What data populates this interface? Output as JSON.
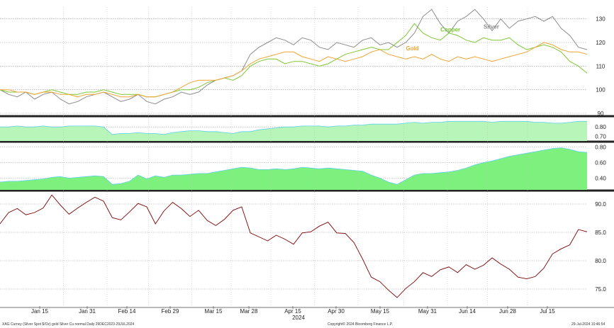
{
  "chart_data": [
    {
      "type": "line",
      "panel": "prices",
      "scale_note": "rebased to 100",
      "ylim": [
        90,
        135
      ],
      "yticks": [
        90,
        100,
        110,
        120,
        130
      ],
      "grid": "horizontal dashed",
      "labels_inline": true,
      "series": [
        {
          "name": "Silver",
          "color": "#8c8c8c",
          "values": [
            100,
            98,
            97,
            99,
            96,
            98,
            99,
            96,
            94,
            95,
            97,
            98,
            99,
            97,
            95,
            96,
            98,
            95,
            94,
            96,
            97,
            99,
            98,
            99,
            102,
            104,
            105,
            106,
            108,
            115,
            118,
            120,
            122,
            121,
            119,
            122,
            121,
            118,
            117,
            120,
            119,
            118,
            121,
            122,
            119,
            120,
            118,
            120,
            124,
            131,
            134,
            128,
            124,
            129,
            131,
            134,
            130,
            125,
            130,
            126,
            129,
            130,
            131,
            129,
            131,
            126,
            123,
            118,
            117
          ]
        },
        {
          "name": "Copper",
          "color": "#7dc832",
          "values": [
            100,
            99,
            99,
            99,
            98,
            99,
            100,
            99,
            98,
            98,
            99,
            99,
            100,
            99,
            98,
            98,
            98,
            97,
            97,
            98,
            99,
            100,
            100,
            101,
            103,
            104,
            105,
            104,
            106,
            110,
            112,
            113,
            113,
            111,
            112,
            112,
            111,
            110,
            111,
            113,
            115,
            116,
            117,
            118,
            117,
            117,
            120,
            123,
            128,
            124,
            122,
            121,
            124,
            123,
            121,
            120,
            122,
            121,
            121,
            122,
            119,
            117,
            118,
            119,
            118,
            116,
            112,
            110,
            107
          ]
        },
        {
          "name": "Gold",
          "color": "#f2a330",
          "values": [
            100,
            100,
            99,
            99,
            98,
            99,
            99,
            98,
            98,
            97,
            98,
            98,
            99,
            98,
            97,
            97,
            98,
            97,
            97,
            98,
            99,
            101,
            103,
            104,
            104,
            104,
            105,
            106,
            108,
            111,
            113,
            114,
            115,
            116,
            116,
            114,
            113,
            112,
            114,
            113,
            112,
            113,
            114,
            116,
            117,
            115,
            114,
            113,
            114,
            113,
            115,
            113,
            112,
            114,
            113,
            114,
            113,
            112,
            113,
            114,
            115,
            116,
            118,
            120,
            119,
            117,
            116,
            116,
            115
          ]
        }
      ]
    },
    {
      "type": "area",
      "panel": "correlation-1",
      "ylim": [
        0.65,
        0.9
      ],
      "yticks": [
        "0.70",
        "0.80"
      ],
      "color": "#b8f5b8",
      "values": [
        0.8,
        0.8,
        0.81,
        0.8,
        0.8,
        0.81,
        0.8,
        0.8,
        0.81,
        0.81,
        0.81,
        0.81,
        0.8,
        0.72,
        0.73,
        0.73,
        0.74,
        0.73,
        0.73,
        0.72,
        0.74,
        0.75,
        0.76,
        0.76,
        0.75,
        0.75,
        0.74,
        0.73,
        0.75,
        0.75,
        0.77,
        0.78,
        0.79,
        0.8,
        0.8,
        0.81,
        0.81,
        0.81,
        0.8,
        0.81,
        0.81,
        0.82,
        0.82,
        0.83,
        0.83,
        0.83,
        0.83,
        0.84,
        0.85,
        0.84,
        0.85,
        0.85,
        0.86,
        0.86,
        0.86,
        0.86,
        0.86,
        0.85,
        0.86,
        0.86,
        0.86,
        0.86,
        0.85,
        0.85,
        0.84,
        0.84,
        0.85,
        0.86,
        0.86
      ]
    },
    {
      "type": "area",
      "panel": "correlation-2",
      "ylim": [
        0.25,
        0.85
      ],
      "yticks": [
        "0.40",
        "0.60",
        "0.80"
      ],
      "color": "#7ef07e",
      "values": [
        0.35,
        0.36,
        0.36,
        0.37,
        0.38,
        0.39,
        0.41,
        0.42,
        0.4,
        0.41,
        0.42,
        0.43,
        0.42,
        0.32,
        0.33,
        0.36,
        0.44,
        0.39,
        0.43,
        0.41,
        0.44,
        0.44,
        0.45,
        0.46,
        0.46,
        0.48,
        0.5,
        0.52,
        0.54,
        0.53,
        0.51,
        0.51,
        0.52,
        0.51,
        0.52,
        0.54,
        0.53,
        0.52,
        0.53,
        0.52,
        0.51,
        0.5,
        0.49,
        0.44,
        0.4,
        0.35,
        0.32,
        0.38,
        0.44,
        0.46,
        0.46,
        0.47,
        0.48,
        0.5,
        0.53,
        0.57,
        0.6,
        0.62,
        0.65,
        0.68,
        0.7,
        0.72,
        0.74,
        0.76,
        0.78,
        0.79,
        0.77,
        0.74,
        0.73
      ]
    },
    {
      "type": "line",
      "panel": "ratio",
      "ylim": [
        72,
        92
      ],
      "yticks": [
        "75.0",
        "80.0",
        "85.0",
        "90.0"
      ],
      "color": "#7a0000",
      "values": [
        86.5,
        88.5,
        89.2,
        88.1,
        88.5,
        89.3,
        91.6,
        89.8,
        88.2,
        89.3,
        90.3,
        91.2,
        90.5,
        87.6,
        87.2,
        88.6,
        90.1,
        89.5,
        86.5,
        88.8,
        90.3,
        89.2,
        87.8,
        88.9,
        87.1,
        86.2,
        87.3,
        88.9,
        89.5,
        84.9,
        84.2,
        83.5,
        84.5,
        83.8,
        82.9,
        84.9,
        85.1,
        86.1,
        86.8,
        84.9,
        84.8,
        83.2,
        80.3,
        77.1,
        76.3,
        74.8,
        73.5,
        75.1,
        76.3,
        77.9,
        77.2,
        78.4,
        78.9,
        77.9,
        79.3,
        78.5,
        79.2,
        80.5,
        79.4,
        78.5,
        77.1,
        76.8,
        77.2,
        78.7,
        81.2,
        82.1,
        82.8,
        85.5,
        85.1
      ]
    }
  ],
  "x_axis": {
    "tick_labels": [
      "Jan 15",
      "Jan 31",
      "Feb 14",
      "Feb 29",
      "Mar 15",
      "Mar 28",
      "Apr 15",
      "Apr 30",
      "May 15",
      "May 31",
      "Jun 14",
      "Jun 28",
      "Jul 15"
    ],
    "year_label": "2024"
  },
  "footer": {
    "left": "XAG Curncy (Silver Spot  $/Oz) gold Silver Cu normal  Daily 29DEC2023-29JUL2024",
    "center": "Copyright© 2024 Bloomberg Finance L.P.",
    "right": "29-Jul-2024 10:46:54"
  }
}
